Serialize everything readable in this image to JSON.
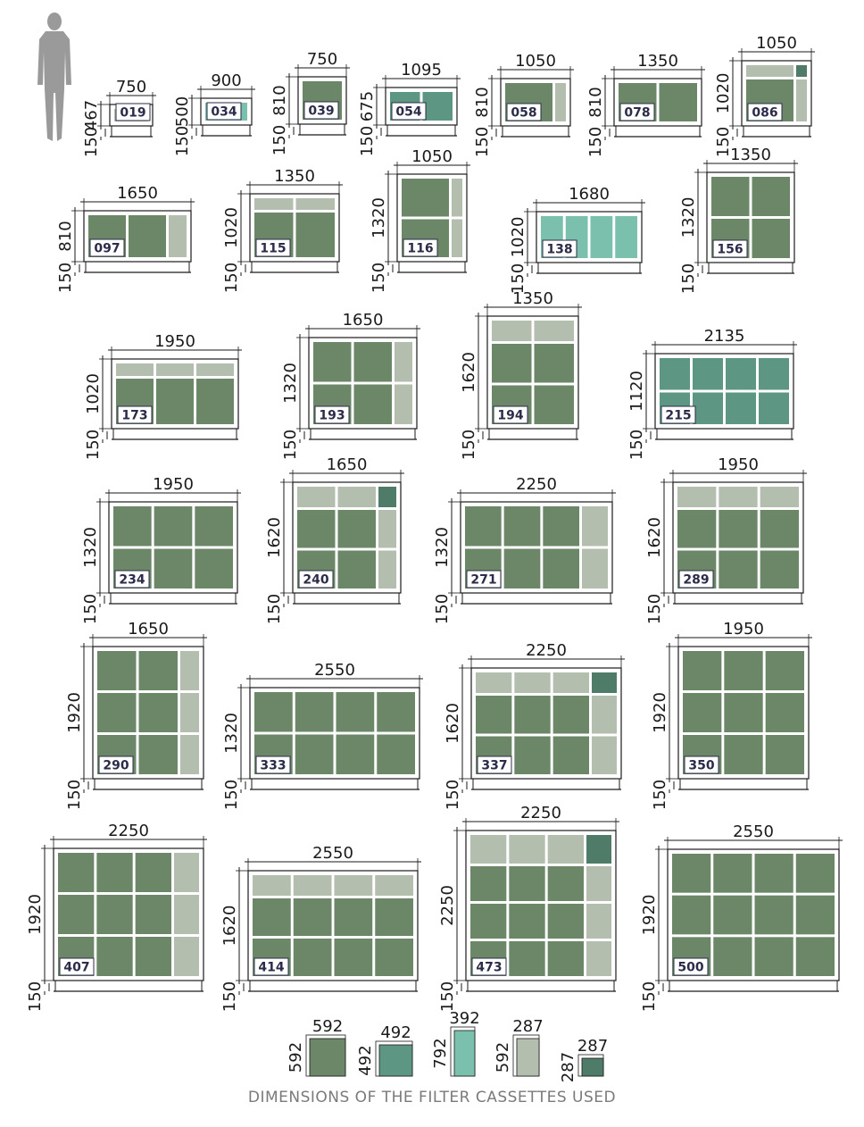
{
  "caption": "DIMENSIONS OF THE FILTER CASSETTES USED",
  "colors": {
    "full": "#6b8768",
    "half": "#5e9684",
    "tall": "#7bc0ac",
    "slim": "#b4beae",
    "small": "#4e7c69",
    "frame": "#1a1a1a"
  },
  "units": [
    {
      "code": "019",
      "width": "750",
      "height": "467",
      "base": "150"
    },
    {
      "code": "034",
      "width": "900",
      "height": "500",
      "base": "150"
    },
    {
      "code": "039",
      "width": "750",
      "height": "810",
      "base": "150"
    },
    {
      "code": "054",
      "width": "1095",
      "height": "675",
      "base": "150"
    },
    {
      "code": "058",
      "width": "1050",
      "height": "810",
      "base": "150"
    },
    {
      "code": "078",
      "width": "1350",
      "height": "810",
      "base": "150"
    },
    {
      "code": "086",
      "width": "1050",
      "height": "1020",
      "base": "150"
    },
    {
      "code": "097",
      "width": "1650",
      "height": "810",
      "base": "150"
    },
    {
      "code": "115",
      "width": "1350",
      "height": "1020",
      "base": "150"
    },
    {
      "code": "116",
      "width": "1050",
      "height": "1320",
      "base": "150"
    },
    {
      "code": "138",
      "width": "1680",
      "height": "1020",
      "base": "150"
    },
    {
      "code": "156",
      "width": "1350",
      "height": "1320",
      "base": "150"
    },
    {
      "code": "173",
      "width": "1950",
      "height": "1020",
      "base": "150"
    },
    {
      "code": "193",
      "width": "1650",
      "height": "1320",
      "base": "150"
    },
    {
      "code": "194",
      "width": "1350",
      "height": "1620",
      "base": "150"
    },
    {
      "code": "215",
      "width": "2135",
      "height": "1120",
      "base": "150"
    },
    {
      "code": "234",
      "width": "1950",
      "height": "1320",
      "base": "150"
    },
    {
      "code": "240",
      "width": "1650",
      "height": "1620",
      "base": "150"
    },
    {
      "code": "271",
      "width": "2250",
      "height": "1320",
      "base": "150"
    },
    {
      "code": "289",
      "width": "1950",
      "height": "1620",
      "base": "150"
    },
    {
      "code": "290",
      "width": "1650",
      "height": "1920",
      "base": "150"
    },
    {
      "code": "333",
      "width": "2550",
      "height": "1320",
      "base": "150"
    },
    {
      "code": "337",
      "width": "2250",
      "height": "1620",
      "base": "150"
    },
    {
      "code": "350",
      "width": "1950",
      "height": "1920",
      "base": "150"
    },
    {
      "code": "407",
      "width": "2250",
      "height": "1920",
      "base": "150"
    },
    {
      "code": "414",
      "width": "2550",
      "height": "1620",
      "base": "150"
    },
    {
      "code": "473",
      "width": "2250",
      "height": "2250",
      "base": "150"
    },
    {
      "code": "500",
      "width": "2550",
      "height": "1920",
      "base": "150"
    }
  ],
  "cassettes": [
    {
      "width": "592",
      "height": "592"
    },
    {
      "width": "492",
      "height": "492"
    },
    {
      "width": "392",
      "height": "792"
    },
    {
      "width": "287",
      "height": "592"
    },
    {
      "width": "287",
      "height": "287"
    }
  ]
}
